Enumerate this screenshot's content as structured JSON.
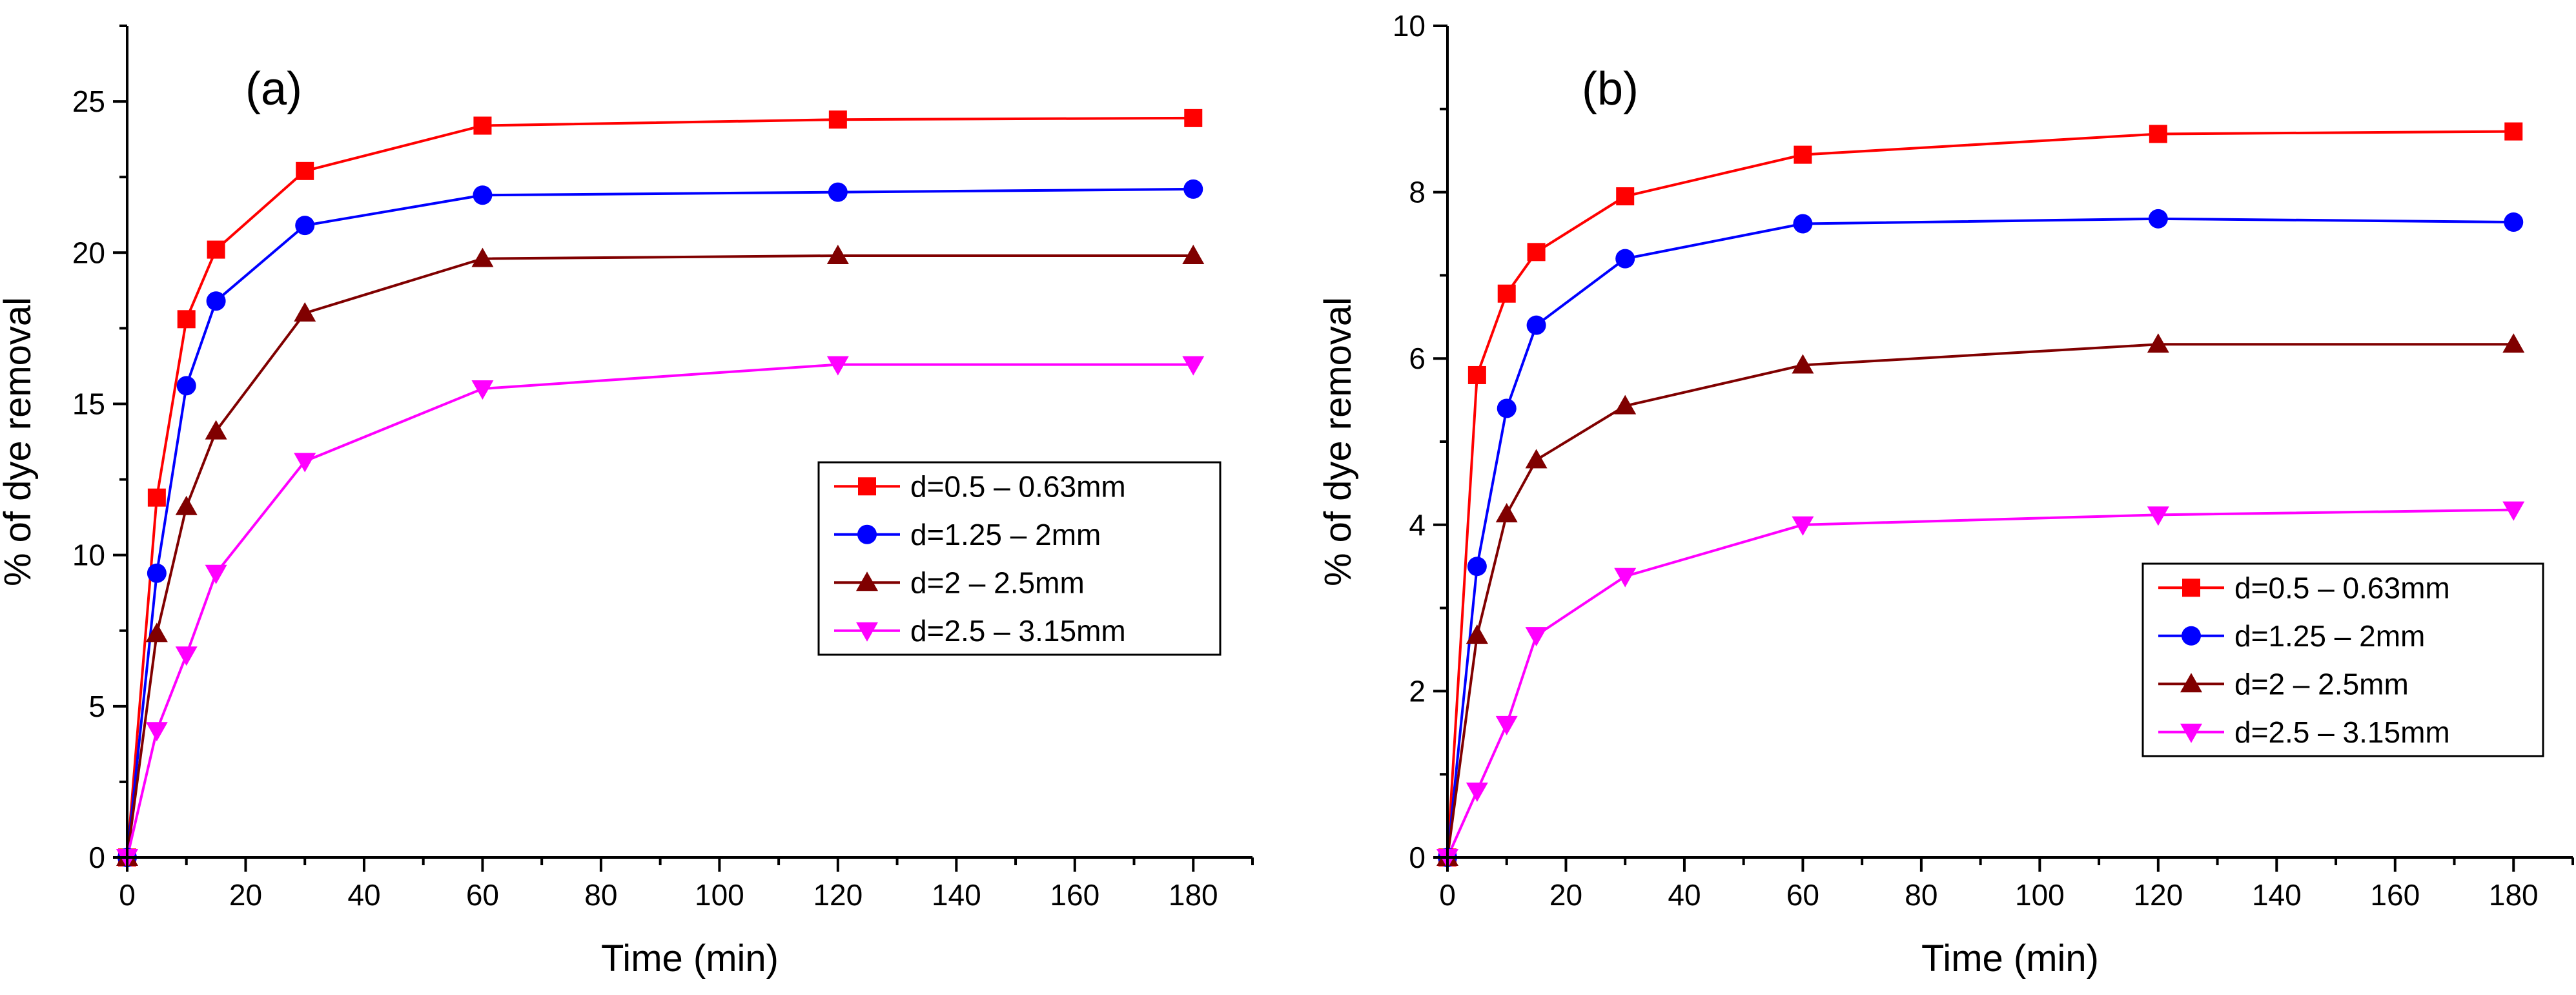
{
  "chart_data": [
    {
      "type": "line",
      "panel_label": "(a)",
      "title": "",
      "xlabel": "Time (min)",
      "ylabel": "% of dye removal",
      "xlim": [
        0,
        190
      ],
      "ylim": [
        0,
        27.5
      ],
      "xticks": [
        0,
        20,
        40,
        60,
        80,
        100,
        120,
        140,
        160,
        180
      ],
      "yticks": [
        0,
        5,
        10,
        15,
        20,
        25
      ],
      "grid": false,
      "legend_position": "center-right",
      "x": [
        0,
        5,
        10,
        15,
        30,
        60,
        120,
        180
      ],
      "series": [
        {
          "name": "d=0.5 – 0.63mm",
          "color": "#ff0000",
          "marker": "square",
          "values": [
            0,
            11.9,
            17.8,
            20.1,
            22.7,
            24.2,
            24.4,
            24.45
          ]
        },
        {
          "name": "d=1.25 – 2mm",
          "color": "#0000ff",
          "marker": "circle",
          "values": [
            0,
            9.4,
            15.6,
            18.4,
            20.9,
            21.9,
            22.0,
            22.1
          ]
        },
        {
          "name": "d=2 – 2.5mm",
          "color": "#800000",
          "marker": "triangle-up",
          "values": [
            0,
            7.4,
            11.6,
            14.1,
            18.0,
            19.8,
            19.9,
            19.9
          ]
        },
        {
          "name": "d=2.5 – 3.15mm",
          "color": "#ff00ff",
          "marker": "triangle-down",
          "values": [
            0,
            4.2,
            6.7,
            9.4,
            13.1,
            15.5,
            16.3,
            16.3
          ]
        }
      ]
    },
    {
      "type": "line",
      "panel_label": "(b)",
      "title": "",
      "xlabel": "Time (min)",
      "ylabel": "% of dye removal",
      "xlim": [
        0,
        190
      ],
      "ylim": [
        0,
        10
      ],
      "xticks": [
        0,
        20,
        40,
        60,
        80,
        100,
        120,
        140,
        160,
        180
      ],
      "yticks": [
        0,
        2,
        4,
        6,
        8,
        10
      ],
      "grid": false,
      "legend_position": "bottom-right",
      "x": [
        0,
        5,
        10,
        15,
        30,
        60,
        120,
        180
      ],
      "series": [
        {
          "name": "d=0.5 – 0.63mm",
          "color": "#ff0000",
          "marker": "square",
          "values": [
            0,
            5.8,
            6.78,
            7.28,
            7.95,
            8.45,
            8.7,
            8.73
          ]
        },
        {
          "name": "d=1.25 – 2mm",
          "color": "#0000ff",
          "marker": "circle",
          "values": [
            0,
            3.5,
            5.4,
            6.4,
            7.2,
            7.62,
            7.68,
            7.64
          ]
        },
        {
          "name": "d=2 – 2.5mm",
          "color": "#800000",
          "marker": "triangle-up",
          "values": [
            0,
            2.67,
            4.13,
            4.78,
            5.43,
            5.92,
            6.17,
            6.17
          ]
        },
        {
          "name": "d=2.5 – 3.15mm",
          "color": "#ff00ff",
          "marker": "triangle-down",
          "values": [
            0,
            0.8,
            1.6,
            2.67,
            3.38,
            4.0,
            4.12,
            4.18
          ]
        }
      ]
    }
  ]
}
